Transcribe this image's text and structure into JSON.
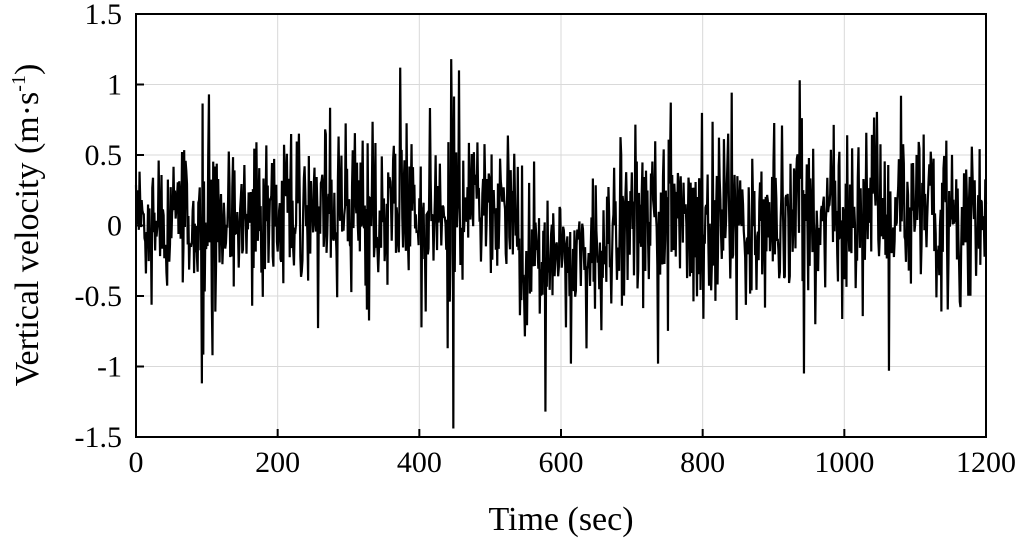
{
  "chart_data": {
    "type": "line",
    "title": "",
    "xlabel": "Time (sec)",
    "ylabel_main": "Vertical velocity (m·s",
    "ylabel_sup": "-1",
    "ylabel_close": ")",
    "xlim": [
      0,
      1200
    ],
    "ylim": [
      -1.5,
      1.5
    ],
    "x_ticks": [
      0,
      200,
      400,
      600,
      800,
      1000,
      1200
    ],
    "x_tick_labels": [
      "0",
      "200",
      "400",
      "600",
      "800",
      "1000",
      "1200"
    ],
    "y_ticks": [
      1.5,
      1,
      0.5,
      0,
      -0.5,
      -1,
      -1.5
    ],
    "y_tick_labels": [
      "1.5",
      "1",
      "0.5",
      "0",
      "-0.5",
      "-1",
      "-1.5"
    ],
    "grid": true,
    "legend": "none",
    "line_color": "#000000",
    "series": [
      {
        "sample_interval_sec": 1,
        "x_start": 0,
        "x_end": 1200,
        "envelope_segments": [
          {
            "x0": 0,
            "x1": 90,
            "amplitude": 0.45,
            "mean": 0.05
          },
          {
            "x0": 90,
            "x1": 115,
            "amplitude": 0.75,
            "mean": 0.05
          },
          {
            "x0": 115,
            "x1": 440,
            "amplitude": 0.5,
            "mean": 0.08
          },
          {
            "x0": 440,
            "x1": 450,
            "amplitude": 1.0,
            "mean": 0.0
          },
          {
            "x0": 450,
            "x1": 540,
            "amplitude": 0.45,
            "mean": 0.1
          },
          {
            "x0": 540,
            "x1": 665,
            "amplitude": 0.45,
            "mean": -0.2
          },
          {
            "x0": 665,
            "x1": 1200,
            "amplitude": 0.55,
            "mean": 0.05
          }
        ],
        "peaks": [
          {
            "x": 93,
            "y": -1.12
          },
          {
            "x": 103,
            "y": 0.93
          },
          {
            "x": 108,
            "y": -0.92
          },
          {
            "x": 373,
            "y": 1.12
          },
          {
            "x": 445,
            "y": 1.18
          },
          {
            "x": 448,
            "y": -1.44
          },
          {
            "x": 456,
            "y": 1.1
          },
          {
            "x": 578,
            "y": -1.32
          },
          {
            "x": 614,
            "y": -0.98
          },
          {
            "x": 737,
            "y": -0.98
          },
          {
            "x": 937,
            "y": 1.03
          },
          {
            "x": 943,
            "y": -1.05
          },
          {
            "x": 1063,
            "y": -1.03
          },
          {
            "x": 1080,
            "y": 0.92
          }
        ]
      }
    ]
  }
}
